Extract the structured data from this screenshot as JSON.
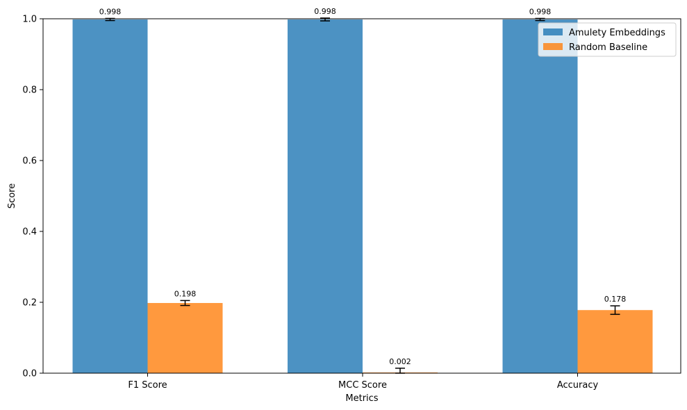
{
  "chart_data": {
    "type": "bar",
    "categories": [
      "F1 Score",
      "MCC Score",
      "Accuracy"
    ],
    "series": [
      {
        "name": "Amulety Embeddings",
        "values": [
          0.998,
          0.998,
          0.998
        ],
        "errors": [
          0.003,
          0.004,
          0.003
        ],
        "labels": [
          "0.998",
          "0.998",
          "0.998"
        ],
        "color": "#1f77b4"
      },
      {
        "name": "Random Baseline",
        "values": [
          0.198,
          0.002,
          0.178
        ],
        "errors": [
          0.007,
          0.012,
          0.012
        ],
        "labels": [
          "0.198",
          "0.002",
          "0.178"
        ],
        "color": "#ff7f0e"
      }
    ],
    "xlabel": "Metrics",
    "ylabel": "Score",
    "ylim": [
      0,
      1.0
    ],
    "yticks": [
      "0.0",
      "0.2",
      "0.4",
      "0.6",
      "0.8",
      "1.0"
    ],
    "bar_alpha": 0.8,
    "error_bar_color": "#000000",
    "grid": false,
    "legend_position": "top-right"
  }
}
